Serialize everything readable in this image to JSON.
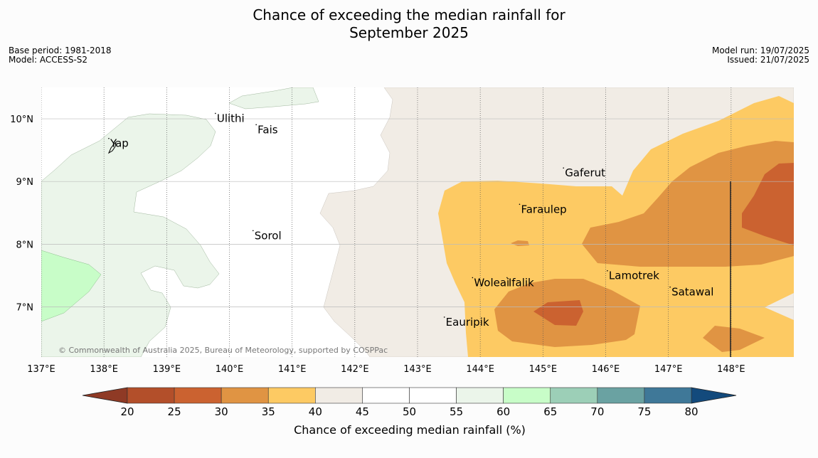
{
  "title": {
    "line1": "Chance of exceeding the median rainfall for",
    "line2": "September 2025"
  },
  "meta_left": {
    "base_period": "Base period: 1981-2018",
    "model": "Model: ACCESS-S2"
  },
  "meta_right": {
    "model_run": "Model run: 19/07/2025",
    "issued": "Issued: 21/07/2025"
  },
  "map": {
    "lon_ticks": [
      "137°E",
      "138°E",
      "139°E",
      "140°E",
      "141°E",
      "142°E",
      "143°E",
      "144°E",
      "145°E",
      "146°E",
      "147°E",
      "148°E"
    ],
    "lat_ticks": [
      "10°N",
      "9°N",
      "8°N",
      "7°N"
    ],
    "lon_range": [
      137,
      149
    ],
    "lat_range": [
      6.2,
      10.5
    ],
    "places": [
      {
        "name": "Ulithi",
        "lon": 139.8,
        "lat": 9.95
      },
      {
        "name": "Yap",
        "lon": 138.1,
        "lat": 9.55
      },
      {
        "name": "Fais",
        "lon": 140.45,
        "lat": 9.77
      },
      {
        "name": "Gaferut",
        "lon": 145.35,
        "lat": 9.08
      },
      {
        "name": "Faraulep",
        "lon": 144.65,
        "lat": 8.5
      },
      {
        "name": "Sorol",
        "lon": 140.4,
        "lat": 8.08
      },
      {
        "name": "Lamotrek",
        "lon": 146.05,
        "lat": 7.44
      },
      {
        "name": "Woleai",
        "lon": 143.9,
        "lat": 7.33
      },
      {
        "name": "Ifalik",
        "lon": 144.45,
        "lat": 7.33
      },
      {
        "name": "Satawal",
        "lon": 147.05,
        "lat": 7.18
      },
      {
        "name": "Eauripik",
        "lon": 143.45,
        "lat": 6.7
      }
    ],
    "copyright": "© Commonwealth of Australia 2025, Bureau of Meteorology, supported by COSPPac"
  },
  "legend": {
    "title": "Chance of exceeding median rainfall (%)",
    "ticks": [
      "20",
      "25",
      "30",
      "35",
      "40",
      "45",
      "50",
      "55",
      "60",
      "65",
      "70",
      "75",
      "80"
    ],
    "colors": [
      "#b34f2a",
      "#cb6230",
      "#e09443",
      "#fdca63",
      "#f1ece5",
      "#ffffff",
      "#ffffff",
      "#ebf5ea",
      "#c8fdc8",
      "#9ccfb7",
      "#6aa2a2",
      "#3f7898"
    ],
    "low_color": "#8f3a25",
    "high_color": "#134a7c"
  }
}
